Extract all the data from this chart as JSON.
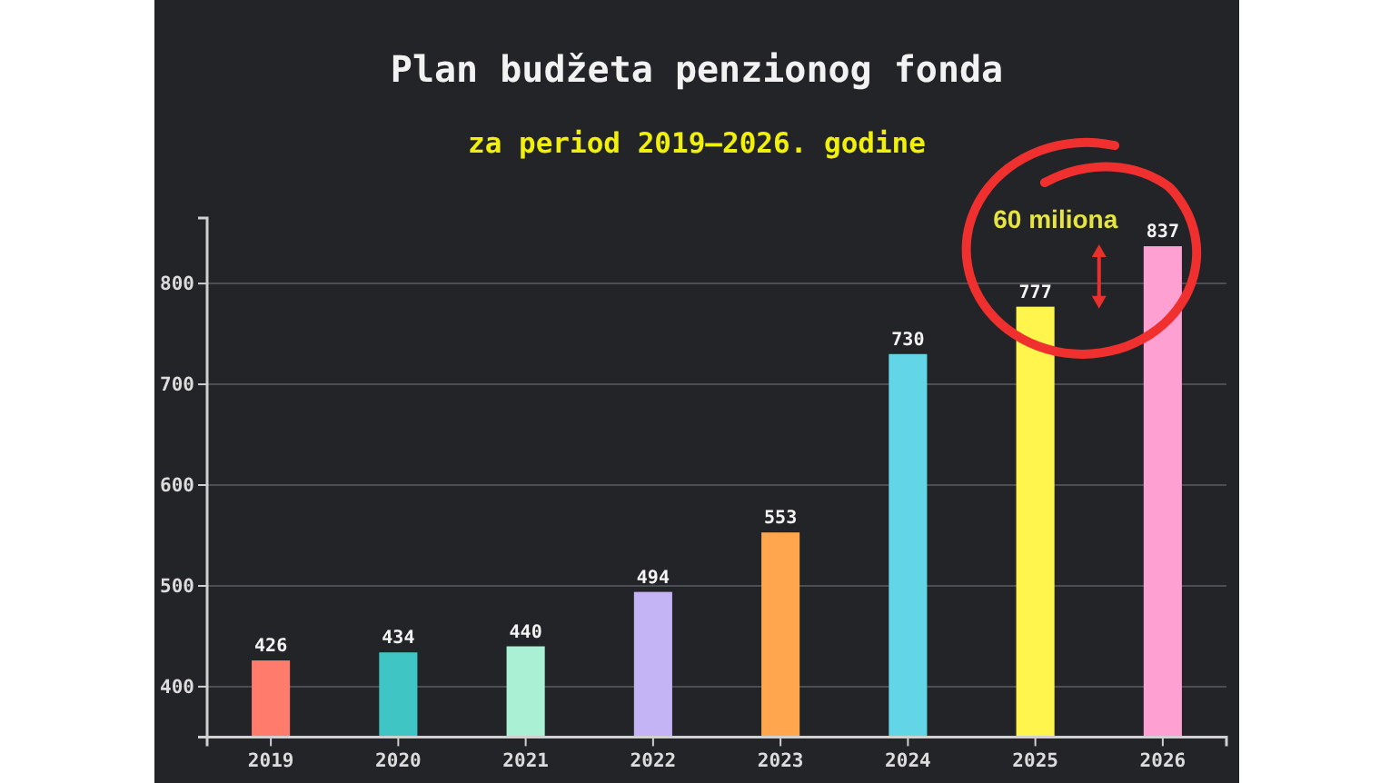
{
  "chart_data": {
    "type": "bar",
    "title": "Plan budžeta penzionog fonda",
    "subtitle": "za period 2019–2026. godine",
    "categories": [
      "2019",
      "2020",
      "2021",
      "2022",
      "2023",
      "2024",
      "2025",
      "2026"
    ],
    "values": [
      426,
      434,
      440,
      494,
      553,
      730,
      777,
      837
    ],
    "colors": [
      "#ff7b6b",
      "#3fc6c4",
      "#a9f0d4",
      "#c4b4f6",
      "#ffa64e",
      "#62d5e6",
      "#fff54c",
      "#ffa0d2"
    ],
    "ylim": [
      350,
      865
    ],
    "yticks": [
      400,
      500,
      600,
      700,
      800
    ],
    "grid": "y",
    "data_labels": true,
    "annotations": [
      "60 miliona"
    ]
  }
}
